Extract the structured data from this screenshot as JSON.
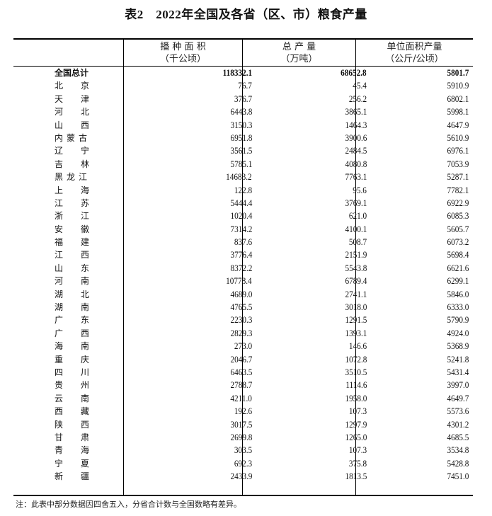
{
  "title": "表2　2022年全国及各省（区、市）粮食产量",
  "headers": [
    {
      "label": "播 种 面 积",
      "unit": "（千公顷）"
    },
    {
      "label": "总 产 量",
      "unit": "（万吨）"
    },
    {
      "label": "单位面积产量",
      "unit": "（公斤/公顷）"
    }
  ],
  "rows": [
    {
      "name": "全国总计",
      "area": "118332.1",
      "output": "68652.8",
      "yield": "5801.7",
      "total": true
    },
    {
      "name": "北京",
      "area": "76.7",
      "output": "45.4",
      "yield": "5910.9"
    },
    {
      "name": "天津",
      "area": "376.7",
      "output": "256.2",
      "yield": "6802.1"
    },
    {
      "name": "河北",
      "area": "6443.8",
      "output": "3865.1",
      "yield": "5998.1"
    },
    {
      "name": "山西",
      "area": "3150.3",
      "output": "1464.3",
      "yield": "4647.9"
    },
    {
      "name": "内蒙古",
      "area": "6951.8",
      "output": "3900.6",
      "yield": "5610.9"
    },
    {
      "name": "辽宁",
      "area": "3561.5",
      "output": "2484.5",
      "yield": "6976.1"
    },
    {
      "name": "吉林",
      "area": "5785.1",
      "output": "4080.8",
      "yield": "7053.9"
    },
    {
      "name": "黑龙江",
      "area": "14683.2",
      "output": "7763.1",
      "yield": "5287.1"
    },
    {
      "name": "上海",
      "area": "122.8",
      "output": "95.6",
      "yield": "7782.1"
    },
    {
      "name": "江苏",
      "area": "5444.4",
      "output": "3769.1",
      "yield": "6922.9"
    },
    {
      "name": "浙江",
      "area": "1020.4",
      "output": "621.0",
      "yield": "6085.3"
    },
    {
      "name": "安徽",
      "area": "7314.2",
      "output": "4100.1",
      "yield": "5605.7"
    },
    {
      "name": "福建",
      "area": "837.6",
      "output": "508.7",
      "yield": "6073.2"
    },
    {
      "name": "江西",
      "area": "3776.4",
      "output": "2151.9",
      "yield": "5698.4"
    },
    {
      "name": "山东",
      "area": "8372.2",
      "output": "5543.8",
      "yield": "6621.6"
    },
    {
      "name": "河南",
      "area": "10778.4",
      "output": "6789.4",
      "yield": "6299.1"
    },
    {
      "name": "湖北",
      "area": "4689.0",
      "output": "2741.1",
      "yield": "5846.0"
    },
    {
      "name": "湖南",
      "area": "4765.5",
      "output": "3018.0",
      "yield": "6333.0"
    },
    {
      "name": "广东",
      "area": "2230.3",
      "output": "1291.5",
      "yield": "5790.9"
    },
    {
      "name": "广西",
      "area": "2829.3",
      "output": "1393.1",
      "yield": "4924.0"
    },
    {
      "name": "海南",
      "area": "273.0",
      "output": "146.6",
      "yield": "5368.9"
    },
    {
      "name": "重庆",
      "area": "2046.7",
      "output": "1072.8",
      "yield": "5241.8"
    },
    {
      "name": "四川",
      "area": "6463.5",
      "output": "3510.5",
      "yield": "5431.4"
    },
    {
      "name": "贵州",
      "area": "2788.7",
      "output": "1114.6",
      "yield": "3997.0"
    },
    {
      "name": "云南",
      "area": "4211.0",
      "output": "1958.0",
      "yield": "4649.7"
    },
    {
      "name": "西藏",
      "area": "192.6",
      "output": "107.3",
      "yield": "5573.6"
    },
    {
      "name": "陕西",
      "area": "3017.5",
      "output": "1297.9",
      "yield": "4301.2"
    },
    {
      "name": "甘肃",
      "area": "2699.8",
      "output": "1265.0",
      "yield": "4685.5"
    },
    {
      "name": "青海",
      "area": "303.5",
      "output": "107.3",
      "yield": "3534.8"
    },
    {
      "name": "宁夏",
      "area": "692.3",
      "output": "375.8",
      "yield": "5428.8"
    },
    {
      "name": "新疆",
      "area": "2433.9",
      "output": "1813.5",
      "yield": "7451.0"
    }
  ],
  "note": "注：此表中部分数据因四舍五入，分省合计数与全国数略有差异。"
}
